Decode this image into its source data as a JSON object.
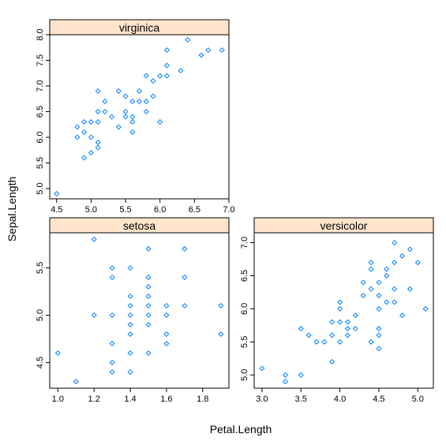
{
  "figure": {
    "xlabel": "Petal.Length",
    "ylabel": "Sepal.Length"
  },
  "colors": {
    "strip_bg": "#ffe5cc",
    "point": "#0080ff"
  },
  "chart_data": [
    {
      "type": "scatter",
      "title": "virginica",
      "xlabel": "Petal.Length",
      "ylabel": "Sepal.Length",
      "xlim": [
        4.4,
        7.0
      ],
      "ylim": [
        4.8,
        8.0
      ],
      "xticks": [
        "4.5",
        "5.0",
        "5.5",
        "6.0",
        "6.5",
        "7.0"
      ],
      "yticks": [
        "5.0",
        "5.5",
        "6.0",
        "6.5",
        "7.0",
        "7.5",
        "8.0"
      ],
      "points": [
        [
          4.5,
          4.9
        ],
        [
          4.8,
          6.0
        ],
        [
          4.8,
          6.2
        ],
        [
          4.9,
          5.6
        ],
        [
          4.9,
          6.1
        ],
        [
          4.9,
          6.3
        ],
        [
          5.0,
          5.7
        ],
        [
          5.0,
          6.0
        ],
        [
          5.0,
          6.3
        ],
        [
          5.1,
          5.8
        ],
        [
          5.1,
          5.9
        ],
        [
          5.1,
          6.3
        ],
        [
          5.1,
          6.5
        ],
        [
          5.1,
          6.9
        ],
        [
          5.2,
          6.5
        ],
        [
          5.2,
          6.7
        ],
        [
          5.3,
          6.4
        ],
        [
          5.4,
          6.2
        ],
        [
          5.4,
          6.9
        ],
        [
          5.5,
          6.4
        ],
        [
          5.5,
          6.5
        ],
        [
          5.5,
          6.8
        ],
        [
          5.6,
          6.1
        ],
        [
          5.6,
          6.3
        ],
        [
          5.6,
          6.4
        ],
        [
          5.6,
          6.7
        ],
        [
          5.7,
          6.7
        ],
        [
          5.7,
          6.9
        ],
        [
          5.8,
          6.5
        ],
        [
          5.8,
          6.7
        ],
        [
          5.8,
          7.2
        ],
        [
          5.9,
          6.8
        ],
        [
          5.9,
          7.1
        ],
        [
          6.0,
          6.3
        ],
        [
          6.0,
          7.2
        ],
        [
          6.1,
          7.2
        ],
        [
          6.1,
          7.4
        ],
        [
          6.1,
          7.7
        ],
        [
          6.3,
          7.3
        ],
        [
          6.4,
          7.9
        ],
        [
          6.6,
          7.6
        ],
        [
          6.7,
          7.7
        ],
        [
          6.9,
          7.7
        ]
      ]
    },
    {
      "type": "scatter",
      "title": "setosa",
      "xlabel": "Petal.Length",
      "ylabel": "Sepal.Length",
      "xlim": [
        0.955,
        1.945
      ],
      "ylim": [
        4.23,
        5.87
      ],
      "xticks": [
        "1.0",
        "1.2",
        "1.4",
        "1.6",
        "1.8"
      ],
      "yticks": [
        "4.5",
        "5.0",
        "5.5"
      ],
      "points": [
        [
          1.0,
          4.6
        ],
        [
          1.1,
          4.3
        ],
        [
          1.2,
          5.0
        ],
        [
          1.2,
          5.8
        ],
        [
          1.3,
          4.4
        ],
        [
          1.3,
          4.5
        ],
        [
          1.3,
          4.7
        ],
        [
          1.3,
          5.0
        ],
        [
          1.3,
          5.4
        ],
        [
          1.3,
          5.5
        ],
        [
          1.4,
          4.4
        ],
        [
          1.4,
          4.6
        ],
        [
          1.4,
          4.8
        ],
        [
          1.4,
          4.9
        ],
        [
          1.4,
          5.0
        ],
        [
          1.4,
          5.1
        ],
        [
          1.4,
          5.2
        ],
        [
          1.4,
          5.5
        ],
        [
          1.5,
          4.6
        ],
        [
          1.5,
          4.9
        ],
        [
          1.5,
          5.0
        ],
        [
          1.5,
          5.1
        ],
        [
          1.5,
          5.2
        ],
        [
          1.5,
          5.3
        ],
        [
          1.5,
          5.4
        ],
        [
          1.5,
          5.7
        ],
        [
          1.6,
          4.7
        ],
        [
          1.6,
          4.8
        ],
        [
          1.6,
          5.0
        ],
        [
          1.6,
          5.1
        ],
        [
          1.7,
          5.1
        ],
        [
          1.7,
          5.4
        ],
        [
          1.7,
          5.7
        ],
        [
          1.9,
          4.8
        ],
        [
          1.9,
          5.1
        ]
      ]
    },
    {
      "type": "scatter",
      "title": "versicolor",
      "xlabel": "Petal.Length",
      "ylabel": "Sepal.Length",
      "xlim": [
        2.9,
        5.2
      ],
      "ylim": [
        4.8,
        7.15
      ],
      "xticks": [
        "3.0",
        "3.5",
        "4.0",
        "4.5",
        "5.0"
      ],
      "yticks": [
        "5.0",
        "5.5",
        "6.0",
        "6.5",
        "7.0"
      ],
      "points": [
        [
          3.0,
          5.1
        ],
        [
          3.3,
          4.9
        ],
        [
          3.3,
          5.0
        ],
        [
          3.5,
          5.0
        ],
        [
          3.5,
          5.7
        ],
        [
          3.6,
          5.6
        ],
        [
          3.7,
          5.5
        ],
        [
          3.8,
          5.5
        ],
        [
          3.9,
          5.2
        ],
        [
          3.9,
          5.6
        ],
        [
          3.9,
          5.8
        ],
        [
          4.0,
          5.5
        ],
        [
          4.0,
          5.8
        ],
        [
          4.0,
          6.0
        ],
        [
          4.0,
          6.1
        ],
        [
          4.1,
          5.6
        ],
        [
          4.1,
          5.7
        ],
        [
          4.1,
          5.8
        ],
        [
          4.2,
          5.7
        ],
        [
          4.2,
          5.9
        ],
        [
          4.3,
          6.2
        ],
        [
          4.3,
          6.4
        ],
        [
          4.4,
          5.5
        ],
        [
          4.4,
          6.3
        ],
        [
          4.4,
          6.6
        ],
        [
          4.4,
          6.7
        ],
        [
          4.5,
          5.4
        ],
        [
          4.5,
          5.6
        ],
        [
          4.5,
          5.7
        ],
        [
          4.5,
          6.0
        ],
        [
          4.5,
          6.2
        ],
        [
          4.5,
          6.4
        ],
        [
          4.6,
          6.1
        ],
        [
          4.6,
          6.5
        ],
        [
          4.6,
          6.6
        ],
        [
          4.7,
          6.1
        ],
        [
          4.7,
          6.3
        ],
        [
          4.7,
          6.7
        ],
        [
          4.7,
          7.0
        ],
        [
          4.8,
          5.9
        ],
        [
          4.8,
          6.8
        ],
        [
          4.9,
          6.3
        ],
        [
          4.9,
          6.9
        ],
        [
          5.0,
          6.7
        ],
        [
          5.1,
          6.0
        ]
      ]
    }
  ]
}
